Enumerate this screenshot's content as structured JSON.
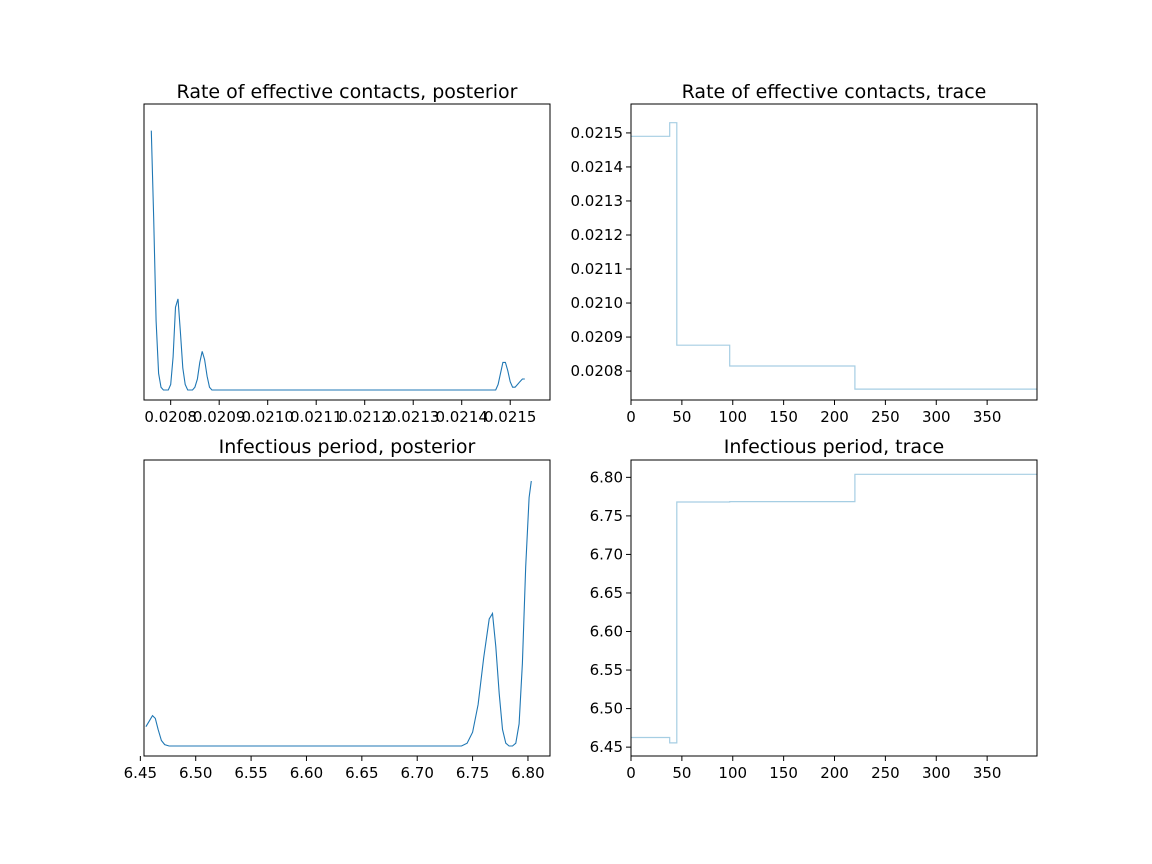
{
  "chart_data": [
    {
      "id": "p1",
      "type": "line",
      "title": "Rate of effective contacts, posterior",
      "xlim": [
        0.020745,
        0.021582
      ],
      "ylim": [
        0,
        1
      ],
      "xticks": [
        0.0208,
        0.0209,
        0.021,
        0.0211,
        0.0212,
        0.0213,
        0.0214,
        0.0215
      ],
      "xtick_labels": [
        "0.0208",
        "0.0209",
        "0.0210",
        "0.0211",
        "0.0212",
        "0.0213",
        "0.0214",
        "0.0215"
      ],
      "yticks": [],
      "ytick_labels": [],
      "x": [
        0.02076,
        0.020765,
        0.02077,
        0.020775,
        0.02078,
        0.020785,
        0.02079,
        0.020795,
        0.0208,
        0.020805,
        0.02081,
        0.020815,
        0.02082,
        0.020825,
        0.02083,
        0.020835,
        0.02084,
        0.020845,
        0.02085,
        0.020855,
        0.02086,
        0.020865,
        0.02087,
        0.020875,
        0.02088,
        0.020885,
        0.02089,
        0.020895,
        0.0209,
        0.02095,
        0.021,
        0.02105,
        0.0211,
        0.02115,
        0.0212,
        0.02125,
        0.0213,
        0.02135,
        0.0214,
        0.02145,
        0.02146,
        0.021465,
        0.02147,
        0.021475,
        0.02148,
        0.021485,
        0.02149,
        0.021495,
        0.0215,
        0.021505,
        0.02151,
        0.021515,
        0.02152,
        0.021525,
        0.02153
      ],
      "values": [
        0.94,
        0.62,
        0.25,
        0.06,
        0.01,
        0.0,
        0.0,
        0.0,
        0.02,
        0.12,
        0.3,
        0.33,
        0.21,
        0.08,
        0.02,
        0.0,
        0.0,
        0.0,
        0.01,
        0.04,
        0.1,
        0.14,
        0.11,
        0.05,
        0.01,
        0.0,
        0.0,
        0.0,
        0.0,
        0.0,
        0.0,
        0.0,
        0.0,
        0.0,
        0.0,
        0.0,
        0.0,
        0.0,
        0.0,
        0.0,
        0.0,
        0.0,
        0.0,
        0.02,
        0.06,
        0.1,
        0.1,
        0.07,
        0.03,
        0.01,
        0.01,
        0.02,
        0.03,
        0.04,
        0.04
      ]
    },
    {
      "id": "p2",
      "type": "line",
      "title": "Rate of effective contacts, trace",
      "xlim": [
        0,
        399
      ],
      "ylim": [
        0.020715,
        0.021585
      ],
      "xticks": [
        0,
        50,
        100,
        150,
        200,
        250,
        300,
        350
      ],
      "xtick_labels": [
        "0",
        "50",
        "100",
        "150",
        "200",
        "250",
        "300",
        "350"
      ],
      "yticks": [
        0.0208,
        0.0209,
        0.021,
        0.0211,
        0.0212,
        0.0213,
        0.0214,
        0.0215
      ],
      "ytick_labels": [
        "0.0208",
        "0.0209",
        "0.0210",
        "0.0211",
        "0.0212",
        "0.0213",
        "0.0214",
        "0.0215"
      ],
      "x": [
        0,
        38,
        38,
        45,
        45,
        97,
        97,
        220,
        220,
        399
      ],
      "values": [
        0.02149,
        0.02149,
        0.02153,
        0.02153,
        0.020876,
        0.020876,
        0.020815,
        0.020815,
        0.020747,
        0.020747
      ]
    },
    {
      "id": "p3",
      "type": "line",
      "title": "Infectious period, posterior",
      "xlim": [
        6.4533,
        6.8199
      ],
      "ylim": [
        0,
        1
      ],
      "xticks": [
        6.45,
        6.5,
        6.55,
        6.6,
        6.65,
        6.7,
        6.75,
        6.8
      ],
      "xtick_labels": [
        "6.45",
        "6.50",
        "6.55",
        "6.60",
        "6.65",
        "6.70",
        "6.75",
        "6.80"
      ],
      "yticks": [],
      "ytick_labels": [],
      "x": [
        6.455,
        6.458,
        6.461,
        6.4635,
        6.466,
        6.469,
        6.472,
        6.476,
        6.48,
        6.55,
        6.65,
        6.74,
        6.745,
        6.75,
        6.755,
        6.76,
        6.765,
        6.768,
        6.771,
        6.774,
        6.777,
        6.78,
        6.783,
        6.786,
        6.789,
        6.792,
        6.795,
        6.798,
        6.801,
        6.803
      ],
      "values": [
        0.07,
        0.09,
        0.11,
        0.1,
        0.06,
        0.02,
        0.005,
        0.0,
        0.0,
        0.0,
        0.0,
        0.0,
        0.01,
        0.05,
        0.15,
        0.32,
        0.46,
        0.48,
        0.36,
        0.19,
        0.06,
        0.01,
        0.0,
        0.0,
        0.01,
        0.08,
        0.3,
        0.65,
        0.9,
        0.96
      ]
    },
    {
      "id": "p4",
      "type": "line",
      "title": "Infectious period, trace",
      "xlim": [
        0,
        399
      ],
      "ylim": [
        6.4385,
        6.8225
      ],
      "xticks": [
        0,
        50,
        100,
        150,
        200,
        250,
        300,
        350
      ],
      "xtick_labels": [
        "0",
        "50",
        "100",
        "150",
        "200",
        "250",
        "300",
        "350"
      ],
      "yticks": [
        6.45,
        6.5,
        6.55,
        6.6,
        6.65,
        6.7,
        6.75,
        6.8
      ],
      "ytick_labels": [
        "6.45",
        "6.50",
        "6.55",
        "6.60",
        "6.65",
        "6.70",
        "6.75",
        "6.80"
      ],
      "x": [
        0,
        38,
        38,
        45,
        45,
        97,
        97,
        220,
        220,
        399
      ],
      "values": [
        6.4625,
        6.4625,
        6.4555,
        6.4555,
        6.768,
        6.768,
        6.7685,
        6.7685,
        6.804,
        6.804
      ]
    }
  ]
}
